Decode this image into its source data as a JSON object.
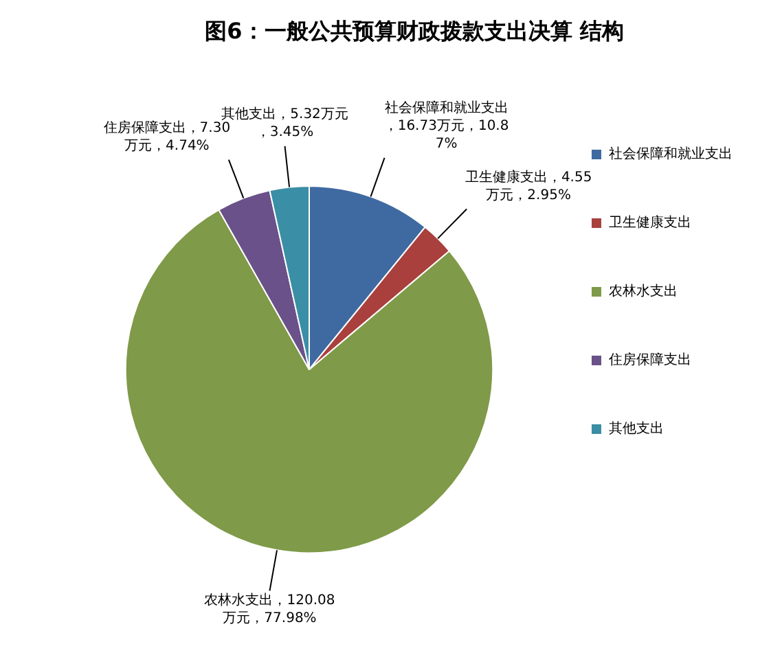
{
  "chart_data": {
    "type": "pie",
    "title": "图6：一般公共预算财政拨款支出决算 结构",
    "categories": [
      "社会保障和就业支出",
      "卫生健康支出",
      "农林水支出",
      "住房保障支出",
      "其他支出"
    ],
    "values": [
      16.73,
      4.55,
      120.08,
      7.3,
      5.32
    ],
    "colors": [
      "#3f6aa1",
      "#a9403d",
      "#7f9a48",
      "#6a5189",
      "#3a8ea5"
    ],
    "value_labels": [
      "社会保障和就业支出，16.73万元，10.87%",
      "卫生健康支出，4.55万元，2.95%",
      "农林水支出，120.08万元，77.98%",
      "住房保障支出，7.30万元，4.74%",
      "其他支出，5.32万元，3.45%"
    ],
    "legend": "right"
  }
}
